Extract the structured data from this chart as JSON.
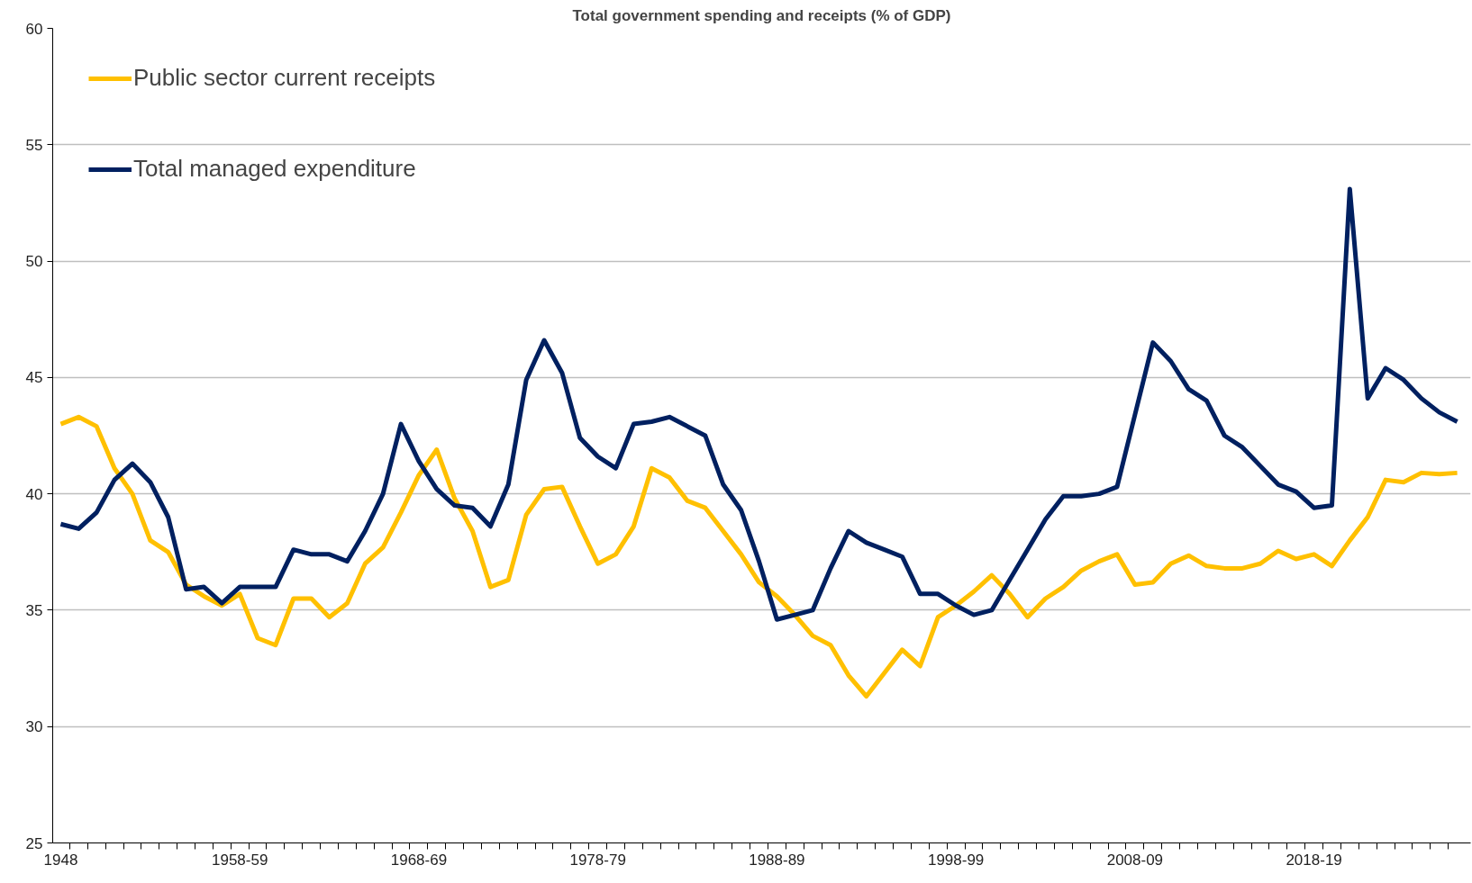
{
  "chart_data": {
    "type": "line",
    "title": "Total government spending and receipts (% of GDP)",
    "categories": [
      "1948",
      null,
      null,
      null,
      null,
      null,
      null,
      null,
      null,
      null,
      "1958-59",
      null,
      null,
      null,
      null,
      null,
      null,
      null,
      null,
      null,
      "1968-69",
      null,
      null,
      null,
      null,
      null,
      null,
      null,
      null,
      null,
      "1978-79",
      null,
      null,
      null,
      null,
      null,
      null,
      null,
      null,
      null,
      "1988-89",
      null,
      null,
      null,
      null,
      null,
      null,
      null,
      null,
      null,
      "1998-99",
      null,
      null,
      null,
      null,
      null,
      null,
      null,
      null,
      null,
      "2008-09",
      null,
      null,
      null,
      null,
      null,
      null,
      null,
      null,
      null,
      "2018-19",
      null,
      null,
      null,
      null,
      null,
      null,
      null,
      null
    ],
    "series": [
      {
        "name": "Public sector current receipts",
        "color": "#ffc000",
        "values": [
          43.0,
          43.3,
          42.9,
          41.1,
          40.0,
          38.0,
          37.5,
          36.1,
          35.6,
          35.2,
          35.7,
          33.8,
          33.5,
          35.5,
          35.5,
          34.7,
          35.3,
          37.0,
          37.7,
          39.2,
          40.8,
          41.9,
          39.8,
          38.4,
          36.0,
          36.3,
          39.1,
          40.2,
          40.3,
          38.6,
          37.0,
          37.4,
          38.6,
          41.1,
          40.7,
          39.7,
          39.4,
          38.4,
          37.4,
          36.2,
          35.6,
          34.8,
          33.9,
          33.5,
          32.2,
          31.3,
          32.3,
          33.3,
          32.6,
          34.7,
          35.2,
          35.8,
          36.5,
          35.7,
          34.7,
          35.5,
          36.0,
          36.7,
          37.1,
          37.4,
          36.1,
          36.2,
          37.0,
          37.35,
          36.9,
          36.8,
          36.8,
          37.0,
          37.55,
          37.2,
          37.4,
          36.9,
          38.0,
          39.0,
          40.6,
          40.5,
          40.9,
          40.85,
          40.9
        ]
      },
      {
        "name": "Total managed expenditure",
        "color": "#002060",
        "values": [
          38.7,
          38.5,
          39.2,
          40.6,
          41.3,
          40.5,
          39.0,
          35.9,
          36.0,
          35.3,
          36.0,
          36.0,
          36.0,
          37.6,
          37.4,
          37.4,
          37.1,
          38.4,
          40.0,
          43.0,
          41.4,
          40.2,
          39.5,
          39.4,
          38.6,
          40.4,
          44.9,
          46.6,
          45.2,
          42.4,
          41.6,
          41.1,
          43.0,
          43.1,
          43.3,
          42.9,
          42.5,
          40.4,
          39.3,
          37.1,
          34.6,
          34.8,
          35.0,
          36.8,
          38.4,
          37.9,
          37.6,
          37.3,
          35.7,
          35.7,
          35.2,
          34.8,
          35.0,
          36.3,
          37.6,
          38.9,
          39.9,
          39.9,
          40.0,
          40.3,
          43.4,
          46.5,
          45.7,
          44.5,
          44.0,
          42.5,
          42.0,
          41.2,
          40.4,
          40.1,
          39.4,
          39.5,
          53.1,
          44.1,
          45.4,
          44.9,
          44.1,
          43.5,
          43.1
        ]
      }
    ],
    "ylim": [
      25,
      60
    ],
    "yticks": [
      25,
      30,
      35,
      40,
      45,
      50,
      55,
      60
    ],
    "grid": "y",
    "legend": "top left",
    "marker": "none",
    "line_style": "solid"
  }
}
